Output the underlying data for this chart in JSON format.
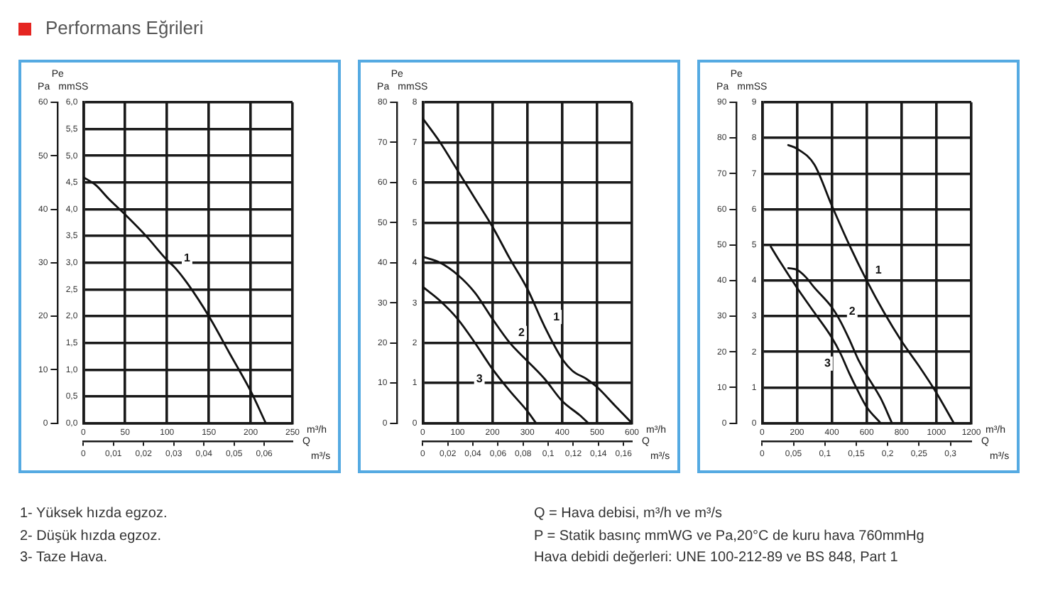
{
  "chart_data": [
    {
      "type": "other",
      "title": "Performans Eğrileri"
    },
    {
      "type": "line",
      "xlabel": "m³/h",
      "x2label": "m³/s",
      "ylabel": "mmSS",
      "y2label": "Pa",
      "annotations": [
        "Pe",
        "Q"
      ],
      "xlim": [
        0,
        250
      ],
      "xticks": [
        0,
        50,
        100,
        150,
        200,
        250
      ],
      "x2lim": [
        0,
        0.0694
      ],
      "x2ticks": [
        {
          "value": 0,
          "label": "0"
        },
        {
          "value": 0.01,
          "label": "0,01"
        },
        {
          "value": 0.02,
          "label": "0,02"
        },
        {
          "value": 0.03,
          "label": "0,03"
        },
        {
          "value": 0.04,
          "label": "0,04"
        },
        {
          "value": 0.05,
          "label": "0,05"
        },
        {
          "value": 0.06,
          "label": "0,06"
        }
      ],
      "ylim": [
        0,
        6
      ],
      "yticks": [
        {
          "value": 0,
          "label": "0,0"
        },
        {
          "value": 0.5,
          "label": "0,5"
        },
        {
          "value": 1,
          "label": "1,0"
        },
        {
          "value": 1.5,
          "label": "1,5"
        },
        {
          "value": 2,
          "label": "2,0"
        },
        {
          "value": 2.5,
          "label": "2,5"
        },
        {
          "value": 3,
          "label": "3,0"
        },
        {
          "value": 3.5,
          "label": "3,5"
        },
        {
          "value": 4,
          "label": "4,0"
        },
        {
          "value": 4.5,
          "label": "4,5"
        },
        {
          "value": 5,
          "label": "5,0"
        },
        {
          "value": 5.5,
          "label": "5,5"
        },
        {
          "value": 6,
          "label": "6,0"
        }
      ],
      "y2lim": [
        0,
        60
      ],
      "y2ticks": [
        0,
        10,
        20,
        30,
        40,
        50,
        60
      ],
      "grid": true,
      "series": [
        {
          "name": "1",
          "color": "#111111",
          "x": [
            0,
            15,
            30,
            50,
            75,
            100,
            110,
            125,
            150,
            175,
            200,
            218
          ],
          "values": [
            4.6,
            4.45,
            4.2,
            3.9,
            3.5,
            3.05,
            2.9,
            2.6,
            2.0,
            1.3,
            0.6,
            0
          ]
        }
      ]
    },
    {
      "type": "line",
      "xlabel": "m³/h",
      "x2label": "m³/s",
      "ylabel": "mmSS",
      "y2label": "Pa",
      "annotations": [
        "Pe",
        "Q"
      ],
      "xlim": [
        0,
        600
      ],
      "xticks": [
        0,
        100,
        200,
        300,
        400,
        500,
        600
      ],
      "x2lim": [
        0,
        0.1667
      ],
      "x2ticks": [
        {
          "value": 0,
          "label": "0"
        },
        {
          "value": 0.02,
          "label": "0,02"
        },
        {
          "value": 0.04,
          "label": "0,04"
        },
        {
          "value": 0.06,
          "label": "0,06"
        },
        {
          "value": 0.08,
          "label": "0,08"
        },
        {
          "value": 0.1,
          "label": "0,1"
        },
        {
          "value": 0.12,
          "label": "0,12"
        },
        {
          "value": 0.14,
          "label": "0,14"
        },
        {
          "value": 0.16,
          "label": "0,16"
        }
      ],
      "ylim": [
        0,
        8
      ],
      "yticks": [
        0,
        1,
        2,
        3,
        4,
        5,
        6,
        7,
        8
      ],
      "y2lim": [
        0,
        80
      ],
      "y2ticks": [
        0,
        10,
        20,
        30,
        40,
        50,
        60,
        70,
        80
      ],
      "grid": true,
      "series": [
        {
          "name": "1",
          "color": "#111111",
          "x": [
            0,
            50,
            100,
            150,
            200,
            250,
            300,
            350,
            400,
            430,
            470,
            500,
            550,
            600
          ],
          "values": [
            7.6,
            7.0,
            6.3,
            5.6,
            4.9,
            4.1,
            3.35,
            2.4,
            1.6,
            1.3,
            1.1,
            0.9,
            0.45,
            0
          ]
        },
        {
          "name": "2",
          "color": "#111111",
          "x": [
            0,
            50,
            100,
            150,
            200,
            250,
            300,
            350,
            400,
            450,
            475
          ],
          "values": [
            4.15,
            4.0,
            3.7,
            3.25,
            2.6,
            2.0,
            1.55,
            1.1,
            0.55,
            0.2,
            0
          ]
        },
        {
          "name": "3",
          "color": "#111111",
          "x": [
            0,
            50,
            100,
            150,
            200,
            250,
            300,
            325
          ],
          "values": [
            3.4,
            3.05,
            2.6,
            2.0,
            1.35,
            0.8,
            0.3,
            0
          ]
        }
      ]
    },
    {
      "type": "line",
      "xlabel": "m³/h",
      "x2label": "m³/s",
      "ylabel": "mmSS",
      "y2label": "Pa",
      "annotations": [
        "Pe",
        "Q"
      ],
      "xlim": [
        0,
        1200
      ],
      "xticks": [
        0,
        200,
        400,
        600,
        800,
        1000,
        1200
      ],
      "x2lim": [
        0,
        0.3333
      ],
      "x2ticks": [
        {
          "value": 0,
          "label": "0"
        },
        {
          "value": 0.05,
          "label": "0,05"
        },
        {
          "value": 0.1,
          "label": "0,1"
        },
        {
          "value": 0.15,
          "label": "0,15"
        },
        {
          "value": 0.2,
          "label": "0,2"
        },
        {
          "value": 0.25,
          "label": "0,25"
        },
        {
          "value": 0.3,
          "label": "0,3"
        }
      ],
      "ylim": [
        0,
        9
      ],
      "yticks": [
        0,
        1,
        2,
        3,
        4,
        5,
        6,
        7,
        8,
        9
      ],
      "y2lim": [
        0,
        90
      ],
      "y2ticks": [
        0,
        10,
        20,
        30,
        40,
        50,
        60,
        70,
        80,
        90
      ],
      "grid": true,
      "series": [
        {
          "name": "1",
          "color": "#111111",
          "x": [
            150,
            200,
            300,
            400,
            500,
            600,
            700,
            800,
            900,
            1000,
            1100
          ],
          "values": [
            7.8,
            7.7,
            7.25,
            6.1,
            5.0,
            4.0,
            3.1,
            2.3,
            1.6,
            0.85,
            0
          ]
        },
        {
          "name": "2",
          "color": "#111111",
          "x": [
            150,
            200,
            250,
            300,
            400,
            450,
            500,
            550,
            600,
            680,
            745
          ],
          "values": [
            4.35,
            4.3,
            4.1,
            3.8,
            3.25,
            2.85,
            2.35,
            1.8,
            1.35,
            0.7,
            0
          ]
        },
        {
          "name": "3",
          "color": "#111111",
          "x": [
            50,
            100,
            200,
            300,
            400,
            450,
            500,
            550,
            600,
            680
          ],
          "values": [
            4.95,
            4.55,
            3.8,
            3.1,
            2.4,
            1.95,
            1.4,
            0.9,
            0.45,
            0
          ]
        }
      ]
    },
    {
      "type": "other",
      "annotations": [
        "1- Yüksek hızda egzoz.",
        "2- Düşük hızda egzoz.",
        "3- Taze Hava.",
        "Q = Hava debisi, m³/h ve m³/s",
        "P = Statik basınç mmWG ve Pa,20°C de kuru hava 760mmHg",
        "Hava debidi değerleri: UNE 100-212-89 ve BS 848, Part 1"
      ]
    }
  ]
}
